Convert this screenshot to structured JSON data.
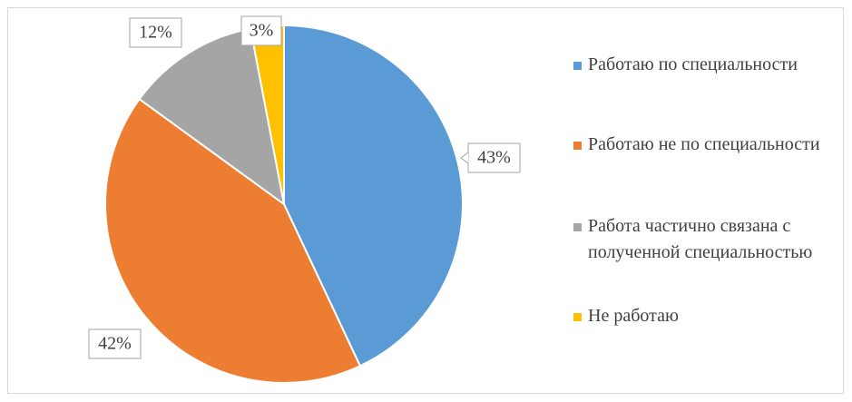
{
  "chart_data": {
    "type": "pie",
    "categories": [
      "Работаю по специальности",
      "Работаю не по специальности",
      "Работа частично связана с полученной специальностью",
      "Не работаю"
    ],
    "values": [
      43,
      42,
      12,
      3
    ],
    "value_labels": [
      "43%",
      "42%",
      "12%",
      "3%"
    ],
    "colors": [
      "#5b9bd5",
      "#ed7d31",
      "#a5a5a5",
      "#ffc000"
    ],
    "legend": "right"
  }
}
